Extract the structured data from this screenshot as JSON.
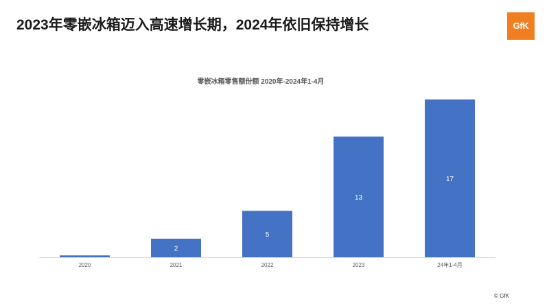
{
  "slide": {
    "headline": "2023年零嵌冰箱迈入高速增长期，2024年依旧保持增长",
    "logo_text": "GfK",
    "copyright": "© GfK"
  },
  "colors": {
    "bar": "#4472c4",
    "logo": "#f07f22",
    "axis": "#d9d9d9"
  },
  "chart_data": {
    "type": "bar",
    "title": "零嵌冰箱零售额份额 2020年-2024年1-4月",
    "xlabel": "",
    "ylabel": "",
    "categories": [
      "2020",
      "2021",
      "2022",
      "2023",
      "24年1-4月"
    ],
    "values": [
      0.2,
      2,
      5,
      13,
      17
    ],
    "data_labels": [
      "",
      "2",
      "5",
      "13",
      "17"
    ],
    "ylim": [
      0,
      17
    ],
    "grid": false,
    "legend": "none"
  }
}
